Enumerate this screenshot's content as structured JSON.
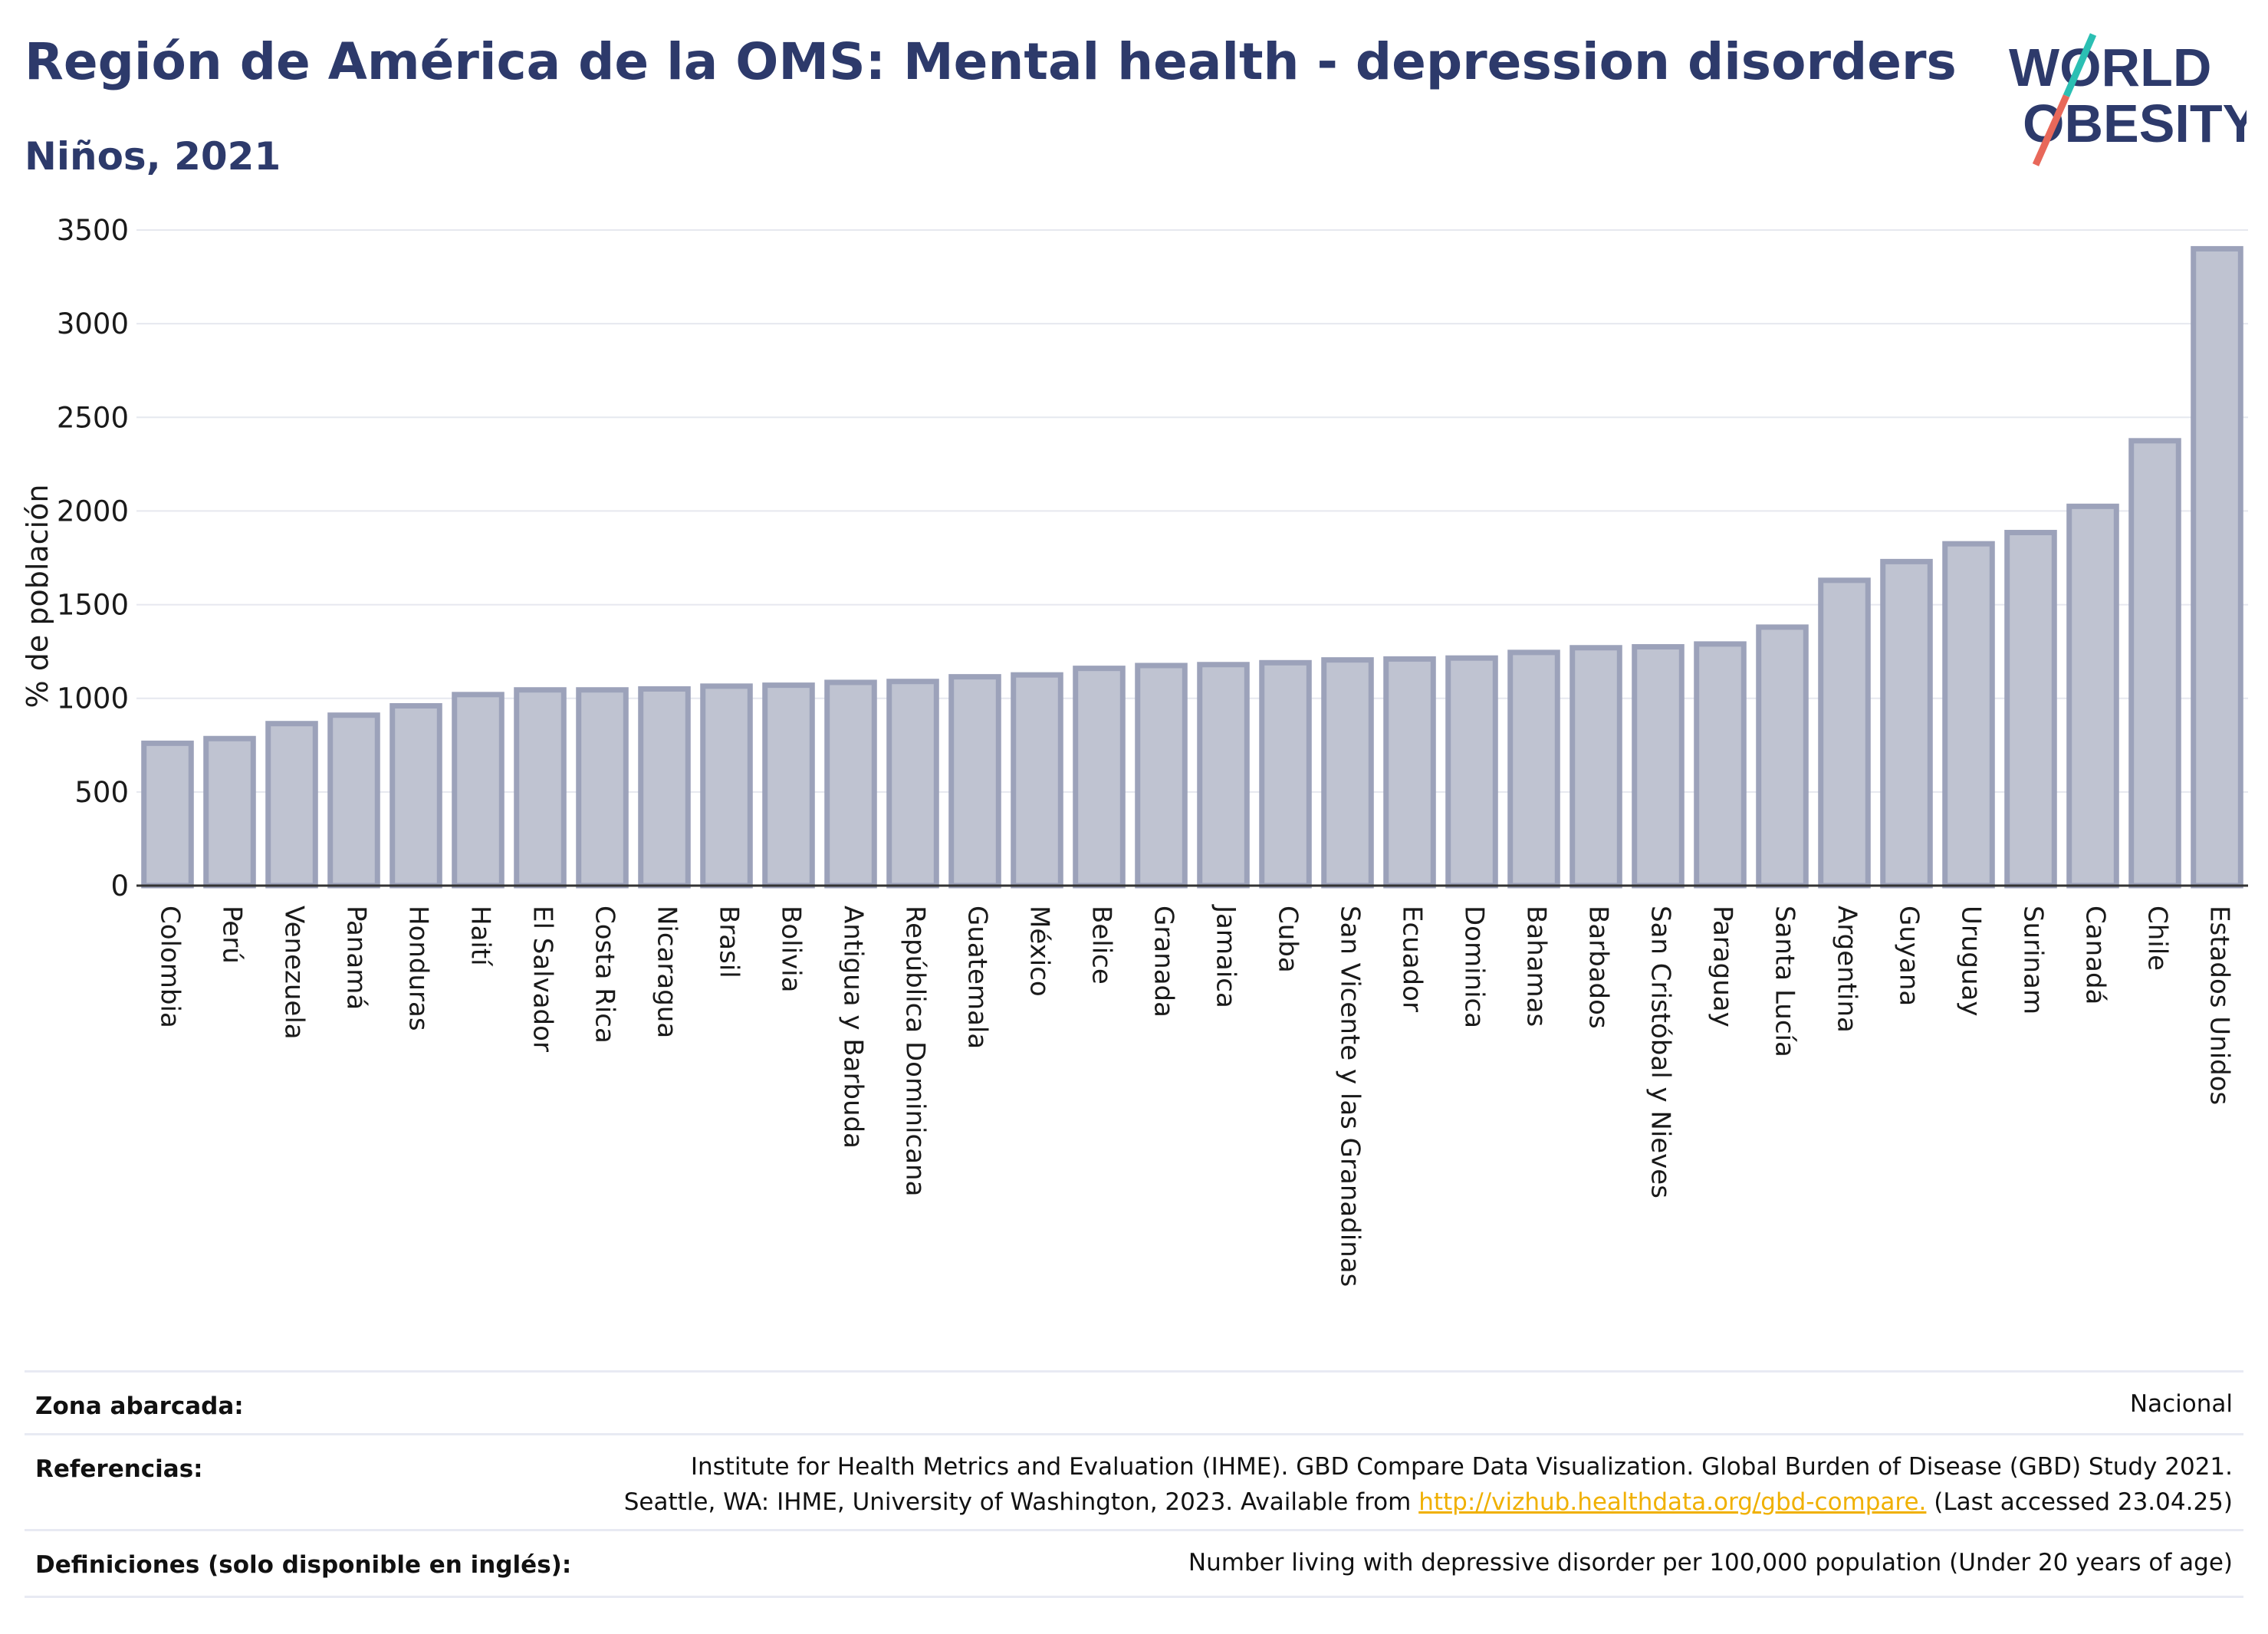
{
  "header": {
    "title": "Región de América de la OMS: Mental health - depression disorders",
    "subtitle": "Niños, 2021"
  },
  "logo": {
    "line1": "WORLD",
    "line2": "OBESITY",
    "accent_colors": [
      "#2bbfb3",
      "#e8685a"
    ]
  },
  "colors": {
    "bar_fill": "#bfc3d1",
    "bar_stroke": "#9ca2ba",
    "text_primary": "#2d3a6b",
    "link": "#f0b000"
  },
  "chart_data": {
    "type": "bar",
    "ylabel": "% de población",
    "xlabel": "",
    "ylim": [
      0,
      3500
    ],
    "yticks": [
      0,
      500,
      1000,
      1500,
      2000,
      2500,
      3000,
      3500
    ],
    "grid": true,
    "categories": [
      "Colombia",
      "Perú",
      "Venezuela",
      "Panamá",
      "Honduras",
      "Haití",
      "El Salvador",
      "Costa Rica",
      "Nicaragua",
      "Brasil",
      "Bolivia",
      "Antigua y Barbuda",
      "República Dominicana",
      "Guatemala",
      "México",
      "Belice",
      "Granada",
      "Jamaica",
      "Cuba",
      "San Vicente y las Granadinas",
      "Ecuador",
      "Dominica",
      "Bahamas",
      "Barbados",
      "San Cristóbal y Nieves",
      "Paraguay",
      "Santa Lucía",
      "Argentina",
      "Guyana",
      "Uruguay",
      "Surinam",
      "Canadá",
      "Chile",
      "Estados Unidos"
    ],
    "values": [
      760,
      785,
      865,
      910,
      960,
      1020,
      1045,
      1045,
      1050,
      1065,
      1070,
      1085,
      1090,
      1115,
      1125,
      1160,
      1175,
      1180,
      1190,
      1205,
      1210,
      1215,
      1245,
      1270,
      1275,
      1290,
      1380,
      1630,
      1730,
      1825,
      1885,
      2025,
      2375,
      3400
    ]
  },
  "footer": {
    "rows": [
      {
        "label": "Zona abarcada:",
        "lines": [
          "Nacional"
        ]
      },
      {
        "label": "Referencias:",
        "lines": [
          "Institute for Health Metrics and Evaluation (IHME). GBD Compare Data Visualization. Global Burden of Disease (GBD) Study 2021.",
          "Seattle, WA: IHME, University of Washington, 2023. Available from "
        ],
        "link": "http://vizhub.healthdata.org/gbd-compare.",
        "after_link": " (Last accessed 23.04.25)"
      },
      {
        "label": "Definiciones (solo disponible en inglés):",
        "lines": [
          "Number living with depressive disorder per 100,000 population (Under 20 years of age)"
        ]
      }
    ]
  }
}
